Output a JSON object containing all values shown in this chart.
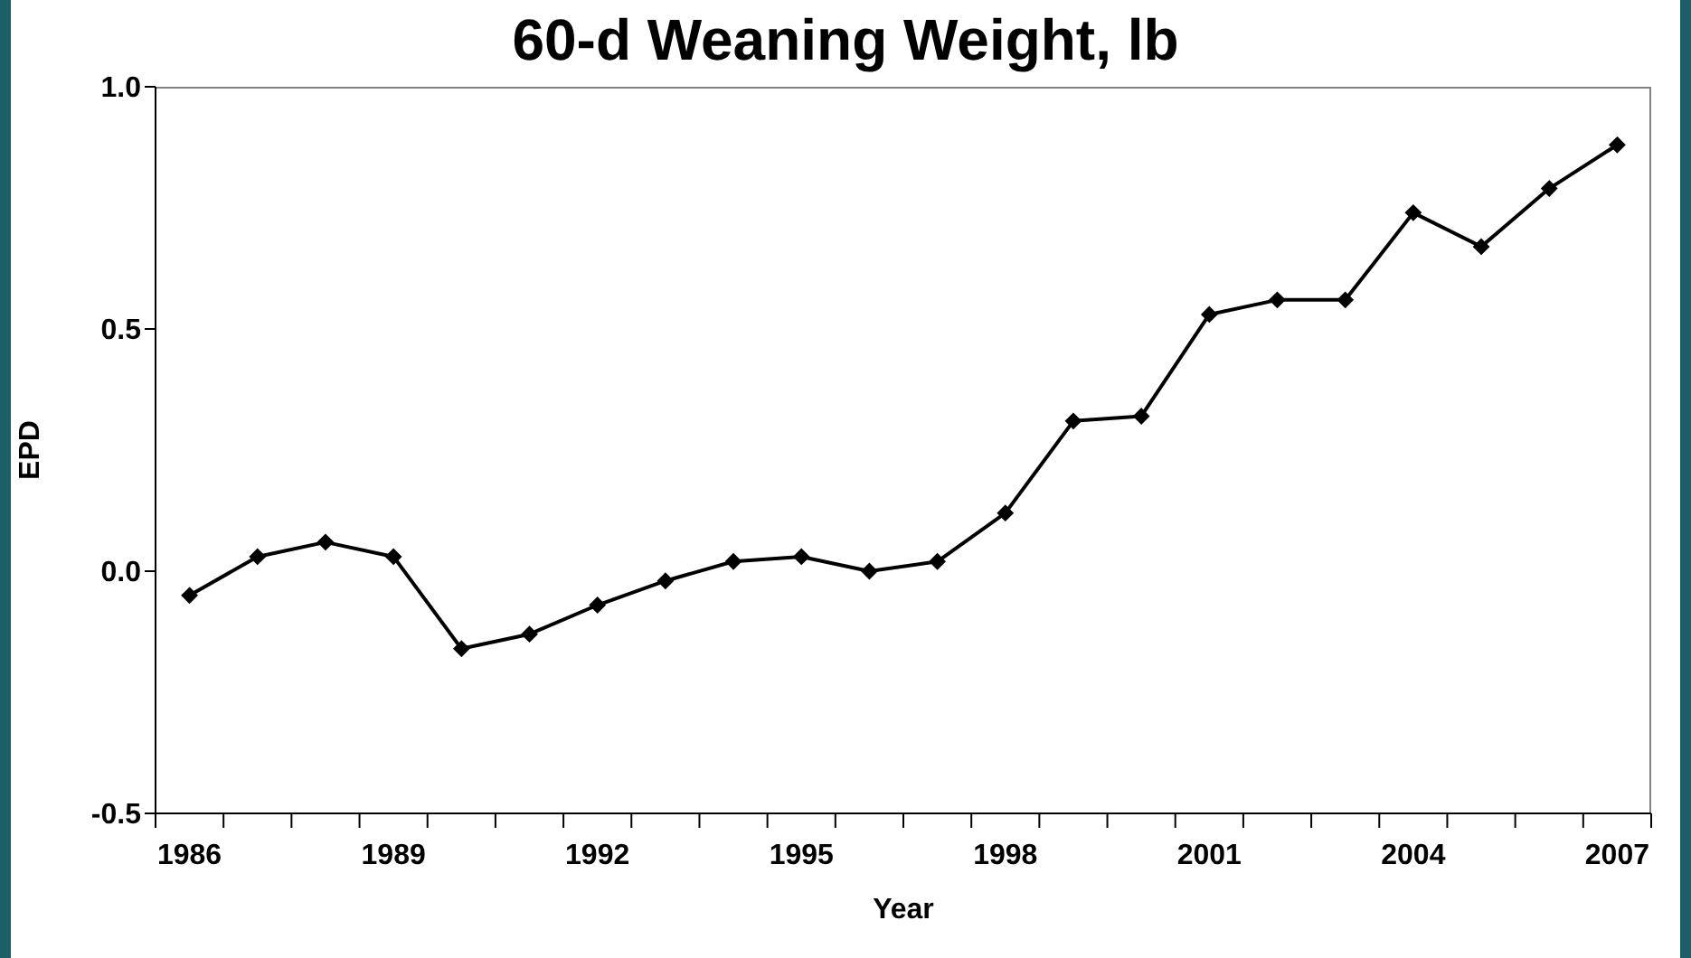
{
  "chart_data": {
    "type": "line",
    "title": "60-d Weaning Weight, lb",
    "xlabel": "Year",
    "ylabel": "EPD",
    "categories": [
      "1986",
      null,
      null,
      "1989",
      null,
      null,
      "1992",
      null,
      null,
      "1995",
      null,
      null,
      "1998",
      null,
      null,
      "2001",
      null,
      null,
      "2004",
      null,
      null,
      "2007"
    ],
    "series": [
      {
        "color": "#000000",
        "values": [
          -0.05,
          0.03,
          0.06,
          0.03,
          -0.16,
          -0.13,
          -0.07,
          -0.02,
          0.02,
          0.03,
          0.0,
          0.02,
          0.12,
          0.31,
          0.32,
          0.53,
          0.56,
          0.56,
          0.74,
          0.67,
          0.79,
          0.88
        ]
      }
    ],
    "ylim": [
      -0.5,
      1.0
    ],
    "yticks": [
      -0.5,
      {
        "value": 0,
        "label": "0.0"
      },
      0.5,
      {
        "value": 1,
        "label": "1.0"
      }
    ],
    "grid": false,
    "legend": false,
    "marker": "diamond",
    "line_style": "solid"
  }
}
